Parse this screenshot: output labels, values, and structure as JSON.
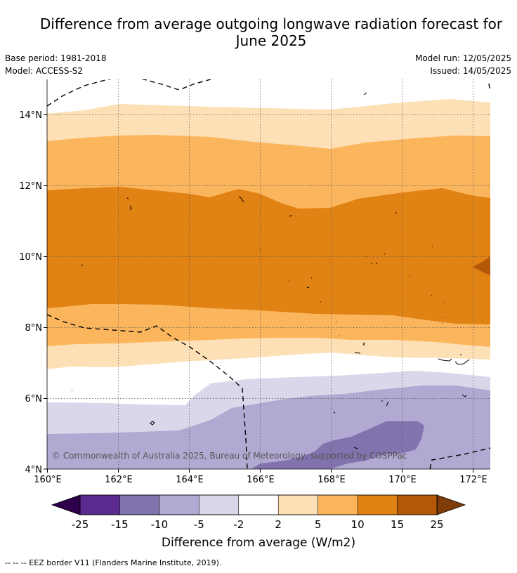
{
  "title_line1": "Difference from average outgoing longwave radiation forecast for",
  "title_line2": "June 2025",
  "base_period": "Base period: 1981-2018",
  "model": "Model: ACCESS-S2",
  "model_run": "Model run: 12/05/2025",
  "issued": "Issued: 14/05/2025",
  "copyright": "© Commonwealth of Australia 2025, Bureau of Meteorology, supported by COSPPac",
  "footnote": "--  --  -- EEZ border V11 (Flanders Marine Institute, 2019).",
  "map": {
    "lon_ticks": [
      "160°E",
      "162°E",
      "164°E",
      "166°E",
      "168°E",
      "170°E",
      "172°E"
    ],
    "lat_ticks": [
      "14°N",
      "12°N",
      "10°N",
      "8°N",
      "6°N",
      "4°N"
    ],
    "lon_range": [
      160,
      172.5
    ],
    "lat_range": [
      4,
      15.1
    ]
  },
  "colorbar": {
    "label": "Difference from average (W/m2)",
    "ticks": [
      "-25",
      "-15",
      "-10",
      "-5",
      "-2",
      "2",
      "5",
      "10",
      "15",
      "25"
    ],
    "colors": [
      "#5b2a8e",
      "#8272ae",
      "#b1a9d1",
      "#d9d8ea",
      "#ffffff",
      "#fee0b6",
      "#fbb65d",
      "#e08214",
      "#b35806"
    ],
    "under_color": "#2d004b",
    "over_color": "#7f3b08"
  },
  "legend_colors": {
    "le": "#d9d8ea",
    "lm": "#b1a9d1",
    "ld": "#8272ae",
    "o1": "#fee0b6",
    "o2": "#fbb65d",
    "o3": "#e08214",
    "o4": "#b35806"
  }
}
